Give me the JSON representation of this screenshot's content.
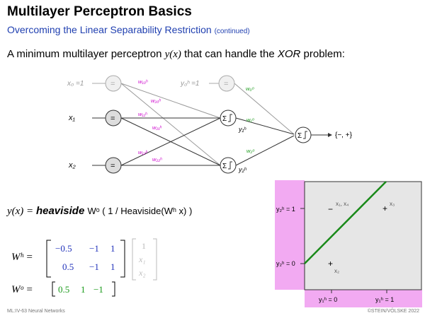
{
  "slide": {
    "title": "Multilayer Perceptron Basics",
    "subtitle": "Overcoming the Linear Separability Restriction",
    "subtitle_note": "(continued)",
    "intro_pre": "A minimum multilayer perceptron ",
    "intro_func": "y(x)",
    "intro_mid": " that can handle the ",
    "intro_xor": "XOR",
    "intro_post": " problem:"
  },
  "network": {
    "x0_label": "x₀ =1",
    "x1_label": "x₁",
    "x2_label": "x₂",
    "y0h_label": "y₀ʰ =1",
    "y1h_label": "y₁ʰ",
    "y2h_label": "y₂ʰ",
    "identity_symbol": "=",
    "sum_symbol": "Σ",
    "output_label": "{−, +}",
    "weights_hidden": [
      "w₁₀ʰ",
      "w₂₀ʰ",
      "w₁₁ʰ",
      "w₂₁ʰ",
      "w₁₂ʰ",
      "w₂₂ʰ"
    ],
    "weights_output": [
      "w₀ᵒ",
      "w₁ᵒ",
      "w₂ᵒ"
    ],
    "colors": {
      "hidden_weight": "#cc00cc",
      "output_weight": "#1a9a1a"
    }
  },
  "equations": {
    "y_lhs": "y(x) = ",
    "y_func": "heaviside",
    "y_arg": "Wᵒ ( 1 / Heaviside(Wʰ x) )",
    "wh_label": "Wʰ =",
    "wh_row1": [
      "−0.5",
      "−1",
      "1"
    ],
    "wh_row2": [
      "0.5",
      "−1",
      "1"
    ],
    "x_vector": [
      "1",
      "x₁",
      "x₂"
    ],
    "wo_label": "Wᵒ =",
    "wo_row": [
      "0.5",
      "1",
      "−1"
    ],
    "colors": {
      "wh_values": "#2233bb",
      "wo_values": "#1a9a1a",
      "x_vector": "#bbbbbb"
    }
  },
  "plot": {
    "ytick_top": "y₂ʰ = 1",
    "ytick_bottom": "y₂ʰ = 0",
    "xtick_left": "y₁ʰ = 0",
    "xtick_right": "y₁ʰ = 1",
    "points": [
      {
        "marker": "−",
        "label": "x₁, x₄"
      },
      {
        "marker": "+",
        "label": "x₃"
      },
      {
        "marker": "+",
        "label": "x₂"
      }
    ],
    "colors": {
      "axis_band": "#f2aaf2",
      "plot_bg": "#e6e6e6",
      "line": "#1a8a1a"
    }
  },
  "footer": {
    "left": "ML:IV-63    Neural Networks",
    "right": "©STEIN/VÖLSKE 2022"
  }
}
